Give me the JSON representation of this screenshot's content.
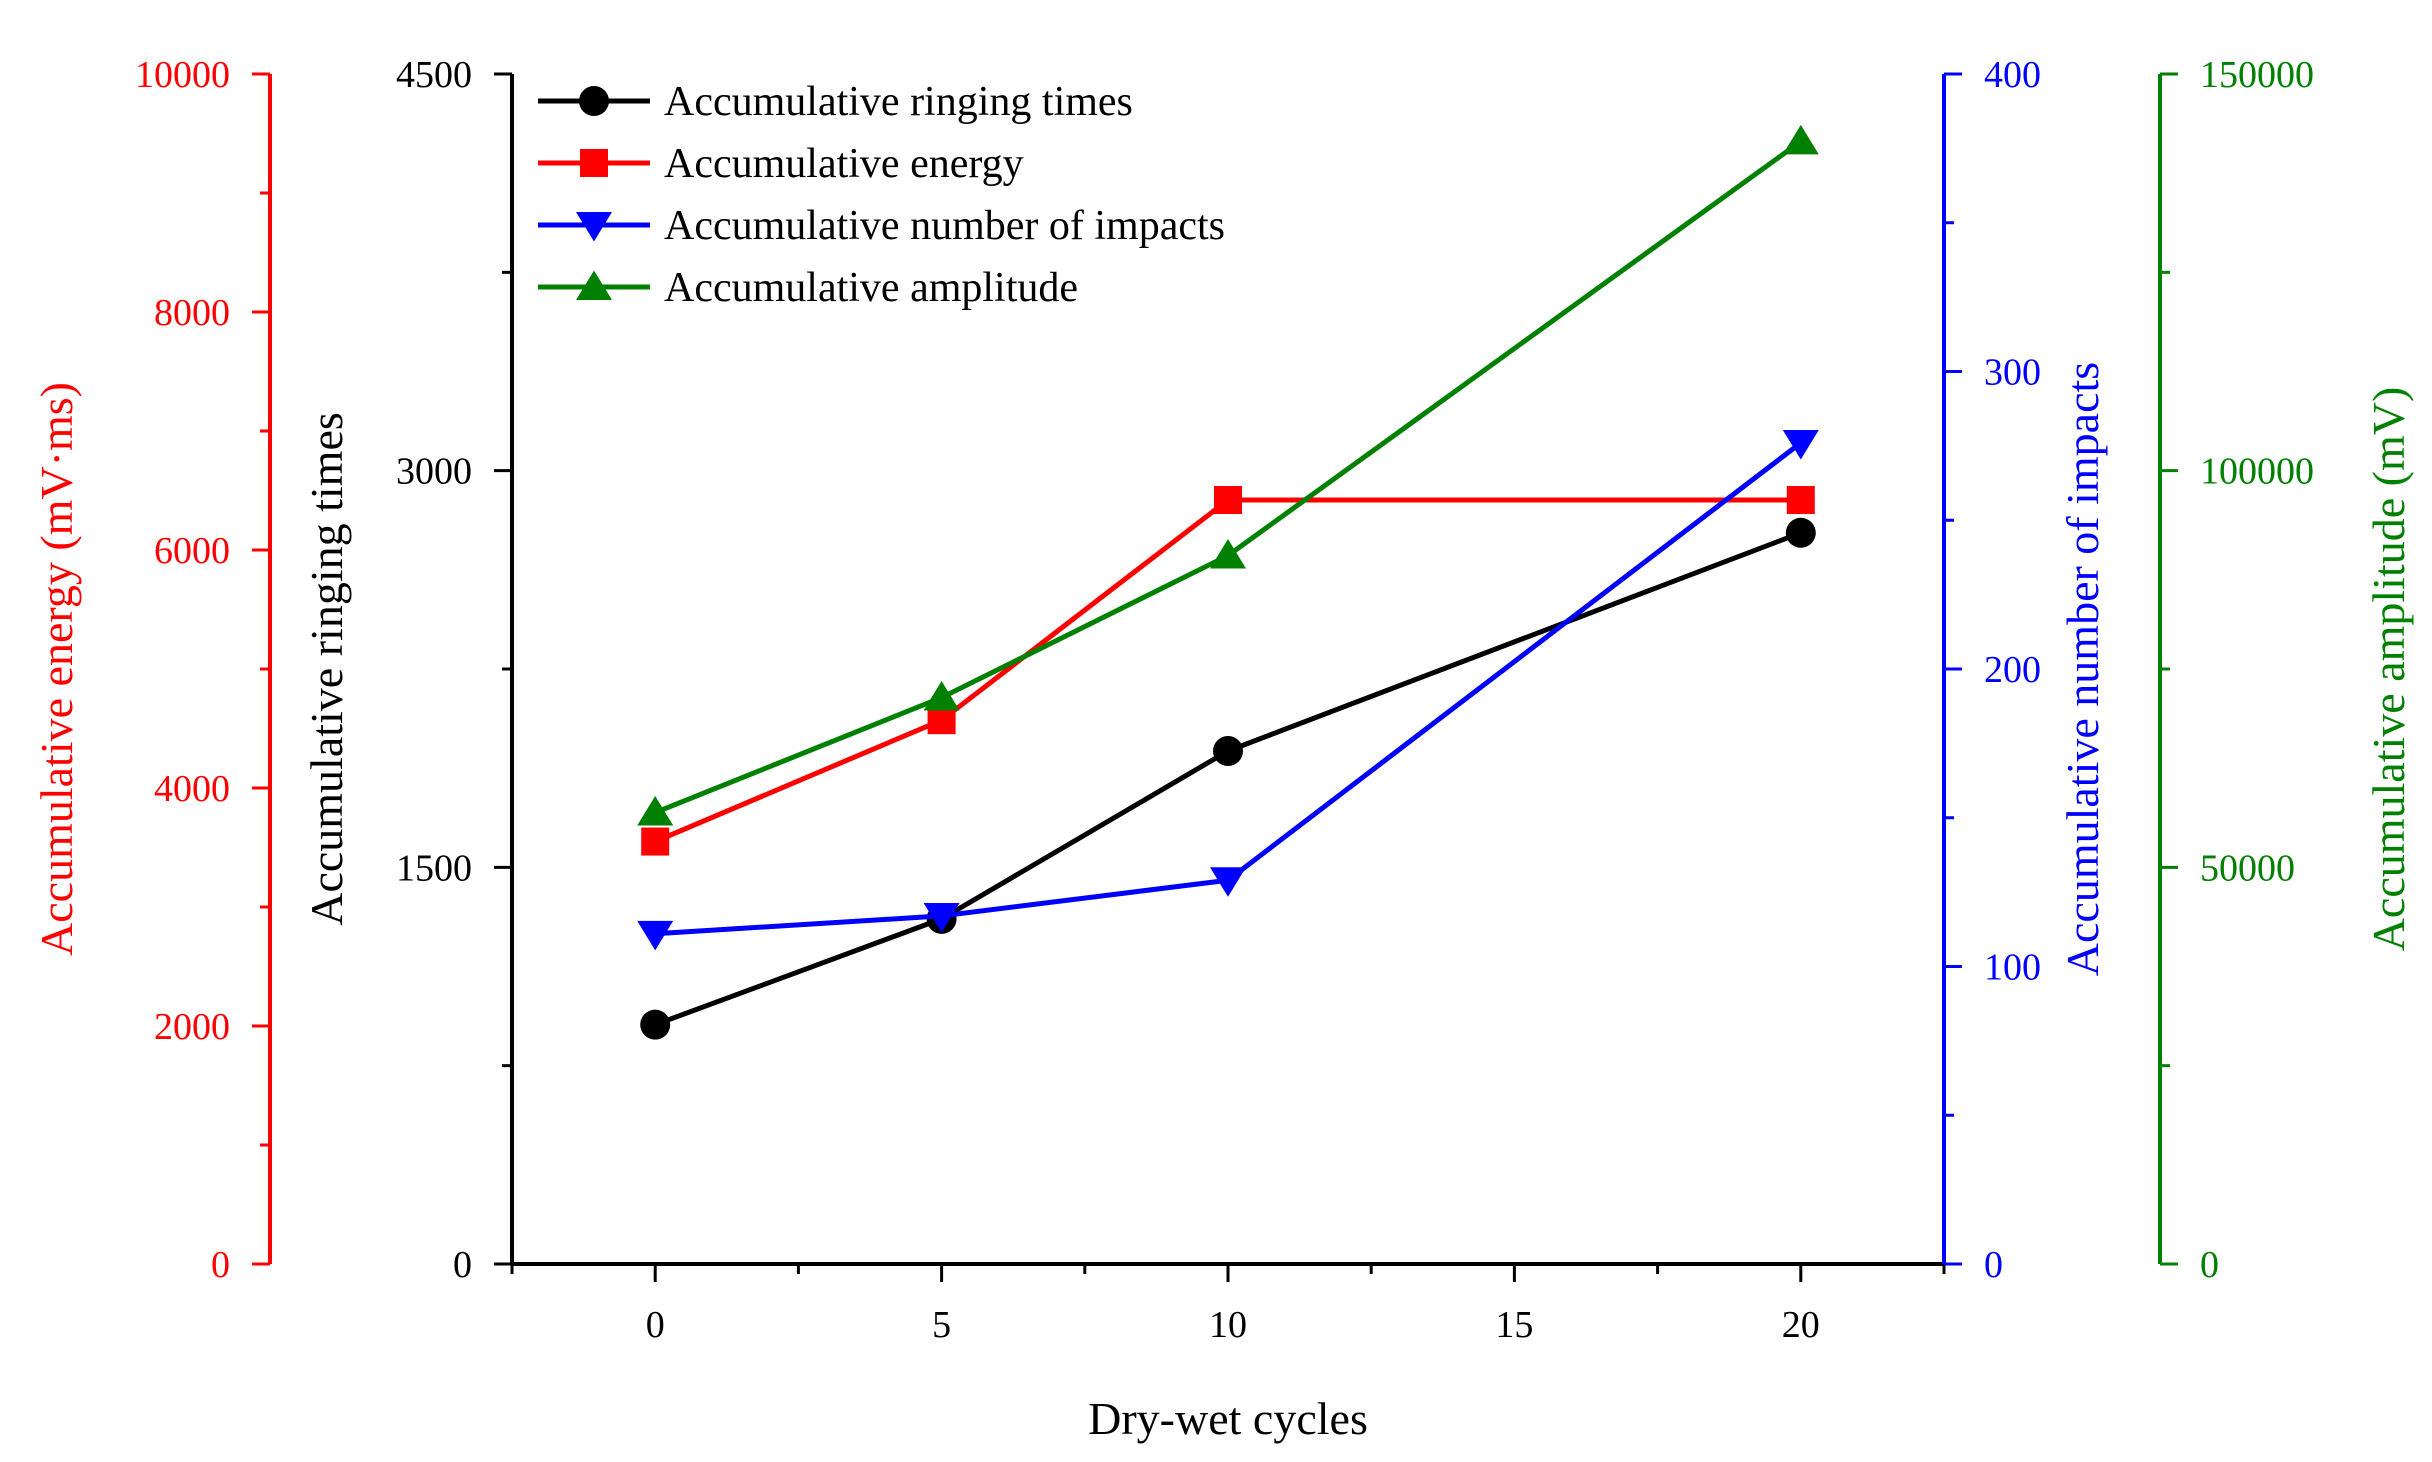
{
  "chart_data": {
    "type": "line",
    "title": "",
    "xlabel": "Dry-wet cycles",
    "xlim": [
      -2.5,
      22.5
    ],
    "x_ticks": [
      0,
      5,
      10,
      15,
      20
    ],
    "x": [
      0,
      5,
      10,
      20
    ],
    "axes": [
      {
        "key": "energy",
        "label": "Accumulative energy (mV·ms)",
        "color": "#ff0000",
        "ylim": [
          0,
          10000
        ],
        "ticks": [
          0,
          2000,
          4000,
          6000,
          8000,
          10000
        ],
        "minor_step": 1000,
        "position": "outer-left"
      },
      {
        "key": "ringing",
        "label": "Accumulative ringing times",
        "color": "#000000",
        "ylim": [
          0,
          4500
        ],
        "ticks": [
          0,
          1500,
          3000,
          4500
        ],
        "minor_step": 750,
        "position": "left"
      },
      {
        "key": "impacts",
        "label": "Accumulative number of impacts",
        "color": "#0000ff",
        "ylim": [
          0,
          400
        ],
        "ticks": [
          0,
          100,
          200,
          300,
          400
        ],
        "minor_step": 50,
        "position": "right"
      },
      {
        "key": "amplitude",
        "label": "Accumulative amplitude (mV)",
        "color": "#008000",
        "ylim": [
          0,
          150000
        ],
        "ticks": [
          0,
          50000,
          100000,
          150000
        ],
        "minor_step": 25000,
        "position": "outer-right"
      }
    ],
    "series": [
      {
        "name": "Accumulative ringing times",
        "axis": "ringing",
        "color": "#000000",
        "marker": "circle",
        "values": [
          905,
          1305,
          1940,
          2765
        ]
      },
      {
        "name": "Accumulative energy",
        "axis": "energy",
        "color": "#ff0000",
        "marker": "square",
        "values": [
          3550,
          4570,
          6420,
          6420
        ]
      },
      {
        "name": "Accumulative number of impacts",
        "axis": "impacts",
        "color": "#0000ff",
        "marker": "triangle-down",
        "values": [
          111,
          117,
          129,
          276
        ]
      },
      {
        "name": "Accumulative amplitude",
        "axis": "amplitude",
        "color": "#008000",
        "marker": "triangle-up",
        "values": [
          56900,
          71400,
          89300,
          141500
        ]
      }
    ],
    "legend": {
      "position": "top-left"
    }
  }
}
